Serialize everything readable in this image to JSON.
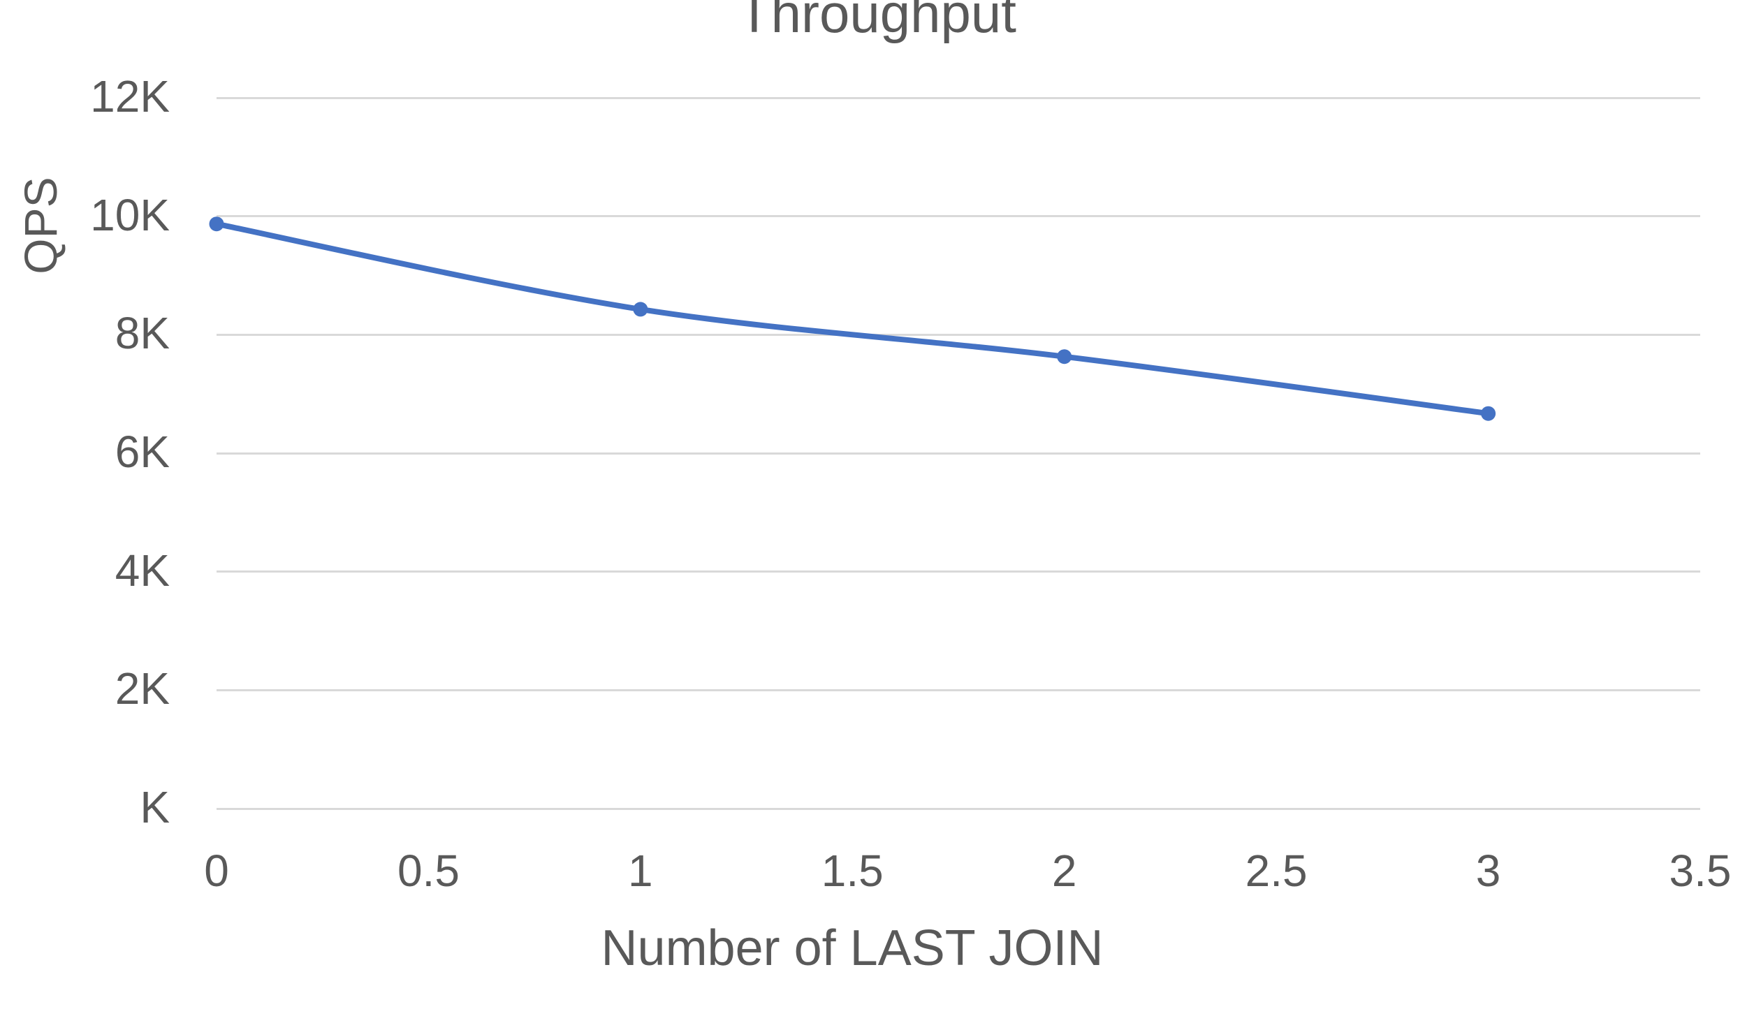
{
  "chart_data": {
    "type": "line",
    "title": "Throughput",
    "xlabel": "Number of LAST JOIN",
    "ylabel": "QPS",
    "x": [
      0,
      1,
      2,
      3
    ],
    "series": [
      {
        "name": "Throughput",
        "values": [
          9870,
          8430,
          7630,
          6670
        ]
      }
    ],
    "xlim": [
      0,
      3.5
    ],
    "ylim": [
      0,
      12000
    ],
    "x_tick_values": [
      0,
      0.5,
      1,
      1.5,
      2,
      2.5,
      3,
      3.5
    ],
    "x_tick_labels": [
      "0",
      "0.5",
      "1",
      "1.5",
      "2",
      "2.5",
      "3",
      "3.5"
    ],
    "y_tick_values": [
      0,
      2000,
      4000,
      6000,
      8000,
      10000,
      12000
    ],
    "y_tick_labels": [
      "K",
      "2K",
      "4K",
      "6K",
      "8K",
      "10K",
      "12K"
    ],
    "grid": "horizontal",
    "legend": "none",
    "smooth_line": true,
    "markers": "circle",
    "colors": {
      "line": "#4472C4",
      "gridline": "#D9D9D9",
      "text": "#595959",
      "background": "#FFFFFF"
    }
  }
}
